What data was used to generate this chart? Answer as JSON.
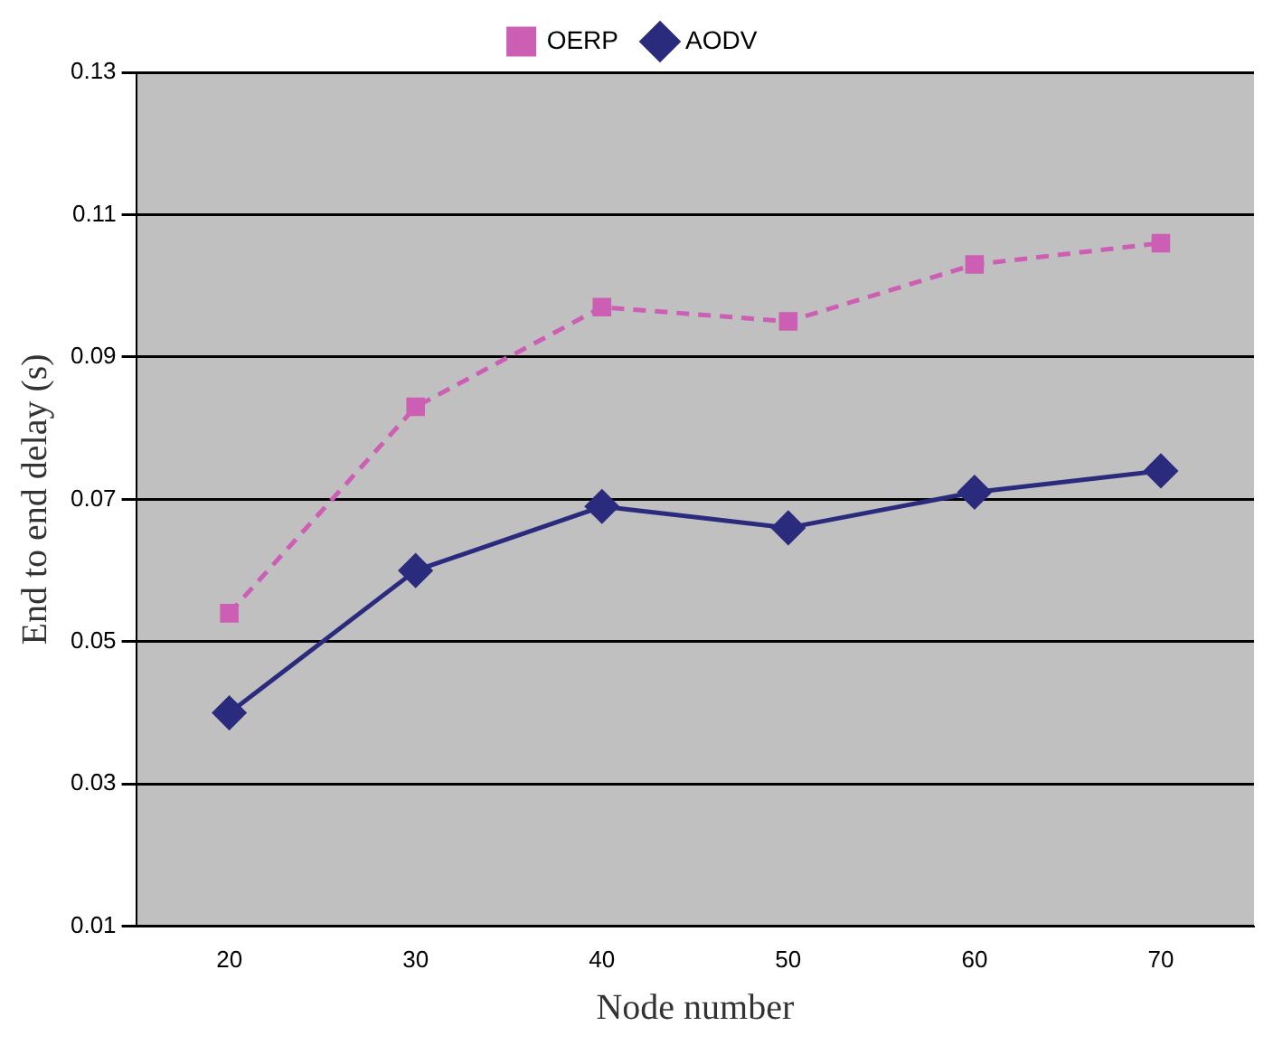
{
  "chart_data": {
    "type": "line",
    "xlabel": "Node number",
    "ylabel": "End to end delay (s)",
    "categories": [
      "20",
      "30",
      "40",
      "50",
      "60",
      "70"
    ],
    "series": [
      {
        "name": "OERP",
        "color": "#cc5fb4",
        "values": [
          0.054,
          0.083,
          0.097,
          0.095,
          0.103,
          0.106
        ],
        "marker": "square",
        "line_style": "dashed"
      },
      {
        "name": "AODV",
        "color": "#2b2b7e",
        "values": [
          0.04,
          0.06,
          0.069,
          0.066,
          0.071,
          0.074
        ],
        "marker": "diamond",
        "line_style": "solid"
      }
    ],
    "ylim": [
      0.01,
      0.13
    ],
    "yticks": [
      0.01,
      0.03,
      0.05,
      0.07,
      0.09,
      0.11,
      0.13
    ],
    "grid": "y",
    "legend": "top"
  }
}
